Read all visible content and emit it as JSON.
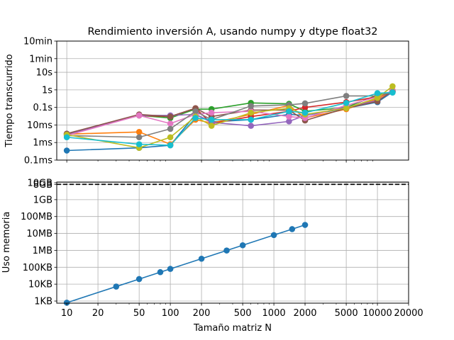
{
  "chart_data": [
    {
      "type": "line",
      "title": "Rendimiento inversión A, usando numpy y dtype float32",
      "xlabel": "",
      "ylabel": "Tiempo transcurrido",
      "xscale": "log",
      "yscale": "log",
      "xlim": [
        8,
        20000
      ],
      "ylim": [
        0.0001,
        600
      ],
      "yticks": [
        {
          "value": 0.0001,
          "label": "0.1ms"
        },
        {
          "value": 0.001,
          "label": "1ms"
        },
        {
          "value": 0.01,
          "label": "10ms"
        },
        {
          "value": 0.1,
          "label": "0.1s"
        },
        {
          "value": 1,
          "label": "1s"
        },
        {
          "value": 10,
          "label": "10s"
        },
        {
          "value": 60,
          "label": "1min"
        },
        {
          "value": 600,
          "label": "10min"
        }
      ],
      "xgrid": [
        10,
        200,
        5000
      ],
      "grid": true,
      "series": [
        {
          "color": "#1f77b4",
          "x": [
            10,
            50,
            100,
            175,
            250,
            600,
            1400,
            2000,
            5000,
            10000,
            14000
          ],
          "y": [
            0.00035,
            0.0005,
            0.0007,
            0.04,
            0.015,
            0.02,
            0.04,
            0.035,
            0.09,
            0.2,
            0.75
          ]
        },
        {
          "color": "#ff7f0e",
          "x": [
            10,
            50,
            100,
            175,
            250,
            600,
            1400,
            2000,
            5000,
            10000,
            14000
          ],
          "y": [
            0.003,
            0.004,
            0.0008,
            0.02,
            0.013,
            0.04,
            0.13,
            0.025,
            0.08,
            0.3,
            0.95
          ]
        },
        {
          "color": "#2ca02c",
          "x": [
            10,
            50,
            100,
            175,
            250,
            600,
            1400,
            2000,
            5000,
            10000,
            14000
          ],
          "y": [
            0.003,
            0.035,
            0.025,
            0.08,
            0.08,
            0.18,
            0.16,
            0.06,
            0.1,
            0.5,
            0.8
          ]
        },
        {
          "color": "#d62728",
          "x": [
            10,
            50,
            100,
            175,
            250,
            600,
            1400,
            2000,
            5000,
            10000,
            14000
          ],
          "y": [
            0.003,
            0.035,
            0.03,
            0.09,
            0.012,
            0.03,
            0.06,
            0.1,
            0.2,
            0.4,
            0.8
          ]
        },
        {
          "color": "#9467bd",
          "x": [
            10,
            50,
            100,
            175,
            250,
            600,
            1400,
            2000,
            5000,
            10000,
            14000
          ],
          "y": [
            0.003,
            0.035,
            0.035,
            0.04,
            0.014,
            0.009,
            0.016,
            0.035,
            0.1,
            0.25,
            0.8
          ]
        },
        {
          "color": "#8c564b",
          "x": [
            10,
            50,
            100,
            175,
            250,
            600,
            1400,
            2000,
            5000,
            10000,
            14000
          ],
          "y": [
            0.0032,
            0.04,
            0.03,
            0.09,
            0.03,
            0.07,
            0.07,
            0.018,
            0.09,
            0.22,
            0.9
          ]
        },
        {
          "color": "#e377c2",
          "x": [
            10,
            50,
            100,
            175,
            250,
            600,
            1400,
            2000,
            5000,
            10000,
            14000
          ],
          "y": [
            0.0025,
            0.035,
            0.012,
            0.04,
            0.05,
            0.06,
            0.03,
            0.025,
            0.13,
            0.4,
            0.9
          ]
        },
        {
          "color": "#7f7f7f",
          "x": [
            10,
            50,
            100,
            175,
            250,
            600,
            1400,
            2000,
            5000,
            10000,
            14000
          ],
          "y": [
            0.0025,
            0.002,
            0.006,
            0.06,
            0.02,
            0.12,
            0.14,
            0.17,
            0.45,
            0.45,
            0.75
          ]
        },
        {
          "color": "#bcbd22",
          "x": [
            10,
            50,
            100,
            175,
            250,
            600,
            1400,
            2000,
            5000,
            10000,
            14000
          ],
          "y": [
            0.0028,
            0.0005,
            0.002,
            0.03,
            0.009,
            0.05,
            0.09,
            0.04,
            0.09,
            0.35,
            1.6
          ]
        },
        {
          "color": "#17becf",
          "x": [
            10,
            50,
            100,
            175,
            250,
            600,
            1400,
            2000,
            5000,
            10000,
            14000
          ],
          "y": [
            0.002,
            0.0008,
            0.0007,
            0.025,
            0.02,
            0.02,
            0.06,
            0.05,
            0.18,
            0.65,
            0.7
          ]
        }
      ]
    },
    {
      "type": "line",
      "title": "",
      "xlabel": "Tamaño matriz N",
      "ylabel": "Uso memoria",
      "xscale": "log",
      "yscale": "log",
      "xlim": [
        8,
        20000
      ],
      "ylim": [
        750,
        11000000000
      ],
      "xticks": [
        {
          "value": 10,
          "label": "10"
        },
        {
          "value": 20,
          "label": "20"
        },
        {
          "value": 50,
          "label": "50"
        },
        {
          "value": 100,
          "label": "100"
        },
        {
          "value": 200,
          "label": "200"
        },
        {
          "value": 500,
          "label": "500"
        },
        {
          "value": 1000,
          "label": "1000"
        },
        {
          "value": 2000,
          "label": "2000"
        },
        {
          "value": 5000,
          "label": "5000"
        },
        {
          "value": 10000,
          "label": "10000"
        },
        {
          "value": 20000,
          "label": "20000"
        }
      ],
      "yticks": [
        {
          "value": 1000,
          "label": "1KB"
        },
        {
          "value": 10000,
          "label": "10KB"
        },
        {
          "value": 100000,
          "label": "100KB"
        },
        {
          "value": 1000000,
          "label": "1MB"
        },
        {
          "value": 10000000,
          "label": "10MB"
        },
        {
          "value": 100000000,
          "label": "100MB"
        },
        {
          "value": 1000000000,
          "label": "1GB"
        },
        {
          "value": 8000000000,
          "label": "8GB"
        },
        {
          "value": 10000000000,
          "label": "10GB"
        }
      ],
      "grid": true,
      "hline": {
        "value": 8000000000,
        "style": "dashed",
        "color": "#000000"
      },
      "series": [
        {
          "color": "#1f77b4",
          "x": [
            10,
            30,
            50,
            80,
            100,
            200,
            350,
            500,
            1000,
            1500,
            2000
          ],
          "y": [
            800,
            7200,
            20000,
            51200,
            80000,
            320000,
            980000,
            2000000,
            8000000,
            18000000,
            32000000
          ]
        }
      ]
    }
  ]
}
